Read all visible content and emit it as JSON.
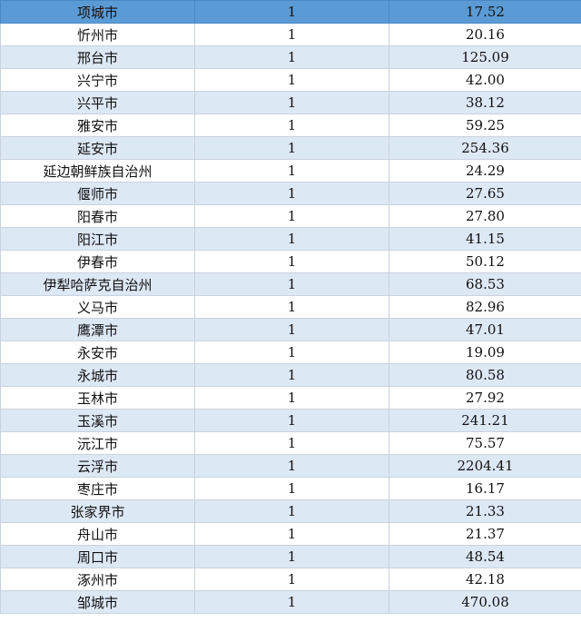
{
  "rows": [
    {
      "city": "项城市",
      "count": "1",
      "value": "17.52"
    },
    {
      "city": "忻州市",
      "count": "1",
      "value": "20.16"
    },
    {
      "city": "邢台市",
      "count": "1",
      "value": "125.09"
    },
    {
      "city": "兴宁市",
      "count": "1",
      "value": "42.00"
    },
    {
      "city": "兴平市",
      "count": "1",
      "value": "38.12"
    },
    {
      "city": "雅安市",
      "count": "1",
      "value": "59.25"
    },
    {
      "city": "延安市",
      "count": "1",
      "value": "254.36"
    },
    {
      "city": "延边朝鲜族自治州",
      "count": "1",
      "value": "24.29"
    },
    {
      "city": "偃师市",
      "count": "1",
      "value": "27.65"
    },
    {
      "city": "阳春市",
      "count": "1",
      "value": "27.80"
    },
    {
      "city": "阳江市",
      "count": "1",
      "value": "41.15"
    },
    {
      "city": "伊春市",
      "count": "1",
      "value": "50.12"
    },
    {
      "city": "伊犁哈萨克自治州",
      "count": "1",
      "value": "68.53"
    },
    {
      "city": "义马市",
      "count": "1",
      "value": "82.96"
    },
    {
      "city": "鹰潭市",
      "count": "1",
      "value": "47.01"
    },
    {
      "city": "永安市",
      "count": "1",
      "value": "19.09"
    },
    {
      "city": "永城市",
      "count": "1",
      "value": "80.58"
    },
    {
      "city": "玉林市",
      "count": "1",
      "value": "27.92"
    },
    {
      "city": "玉溪市",
      "count": "1",
      "value": "241.21"
    },
    {
      "city": "沅江市",
      "count": "1",
      "value": "75.57"
    },
    {
      "city": "云浮市",
      "count": "1",
      "value": "2204.41"
    },
    {
      "city": "枣庄市",
      "count": "1",
      "value": "16.17"
    },
    {
      "city": "张家界市",
      "count": "1",
      "value": "21.33"
    },
    {
      "city": "舟山市",
      "count": "1",
      "value": "21.37"
    },
    {
      "city": "周口市",
      "count": "1",
      "value": "48.54"
    },
    {
      "city": "涿州市",
      "count": "1",
      "value": "42.18"
    },
    {
      "city": "邹城市",
      "count": "1",
      "value": "470.08"
    }
  ]
}
